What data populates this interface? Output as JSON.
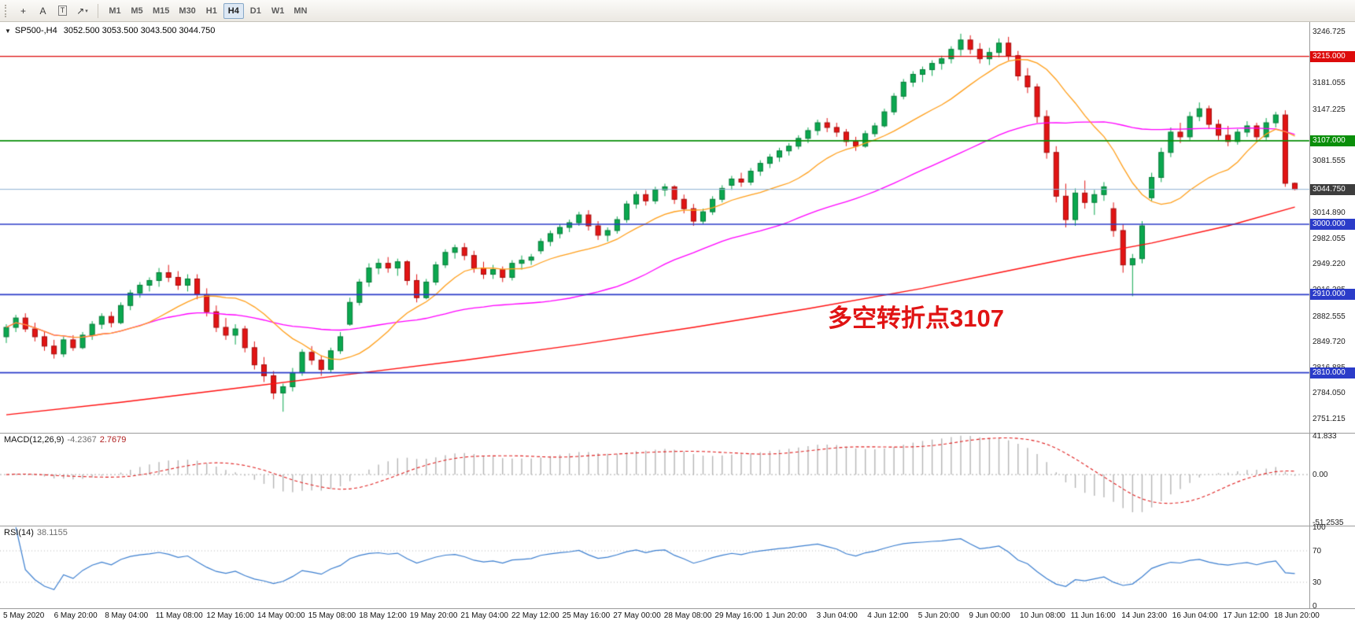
{
  "toolbar": {
    "tools": [
      {
        "name": "crosshair-tool-icon",
        "glyph": "+"
      },
      {
        "name": "text-tool-icon",
        "glyph": "A"
      },
      {
        "name": "label-tool-icon",
        "glyph": "T",
        "boxed": true
      },
      {
        "name": "arrows-tool-icon",
        "glyph": "↗",
        "caret": "▾"
      }
    ],
    "timeframes": [
      {
        "label": "M1"
      },
      {
        "label": "M5"
      },
      {
        "label": "M15"
      },
      {
        "label": "M30"
      },
      {
        "label": "H1"
      },
      {
        "label": "H4",
        "active": true
      },
      {
        "label": "D1"
      },
      {
        "label": "W1"
      },
      {
        "label": "MN"
      }
    ]
  },
  "quote": {
    "collapse_icon": "▼",
    "symbol_period": "SP500-,H4",
    "ohlc": "3052.500 3053.500 3043.500 3044.750"
  },
  "annotation": {
    "text": "多空转折点3107",
    "color": "#e01414"
  },
  "chart_data": {
    "type": "candlestick",
    "symbol": "SP500-",
    "timeframe": "H4",
    "price_axis": {
      "min": 2733,
      "max": 3259,
      "ticks": [
        "3246.725",
        "3181.055",
        "3147.225",
        "3081.555",
        "3014.890",
        "2982.055",
        "2949.220",
        "2916.385",
        "2882.555",
        "2849.720",
        "2816.885",
        "2784.050",
        "2751.215"
      ],
      "badges": [
        {
          "label": "3215.000",
          "price": 3215.0,
          "bg": "#dd0b0b"
        },
        {
          "label": "3107.000",
          "price": 3107.0,
          "bg": "#0a8f0a"
        },
        {
          "label": "3044.750",
          "price": 3044.75,
          "bg": "#3d3d3d"
        },
        {
          "label": "3000.000",
          "price": 3000.0,
          "bg": "#2b3cc9"
        },
        {
          "label": "2910.000",
          "price": 2910.0,
          "bg": "#2b3cc9"
        },
        {
          "label": "2810.000",
          "price": 2810.0,
          "bg": "#2b3cc9"
        }
      ]
    },
    "levels": [
      {
        "price": 3215.0,
        "color": "#dd0b0b",
        "width": 1.4
      },
      {
        "price": 3107.0,
        "color": "#0a8f0a",
        "width": 1.6
      },
      {
        "price": 3000.0,
        "color": "#2b3cc9",
        "width": 1.6
      },
      {
        "price": 2910.0,
        "color": "#2b3cc9",
        "width": 1.6
      },
      {
        "price": 2810.0,
        "color": "#2b3cc9",
        "width": 1.6
      }
    ],
    "current_price": 3044.75,
    "up_color": "#0ba84f",
    "up_border": "#077a38",
    "down_color": "#e21414",
    "down_border": "#a30d0d",
    "candles": [
      [
        2856,
        2872,
        2848,
        2868
      ],
      [
        2868,
        2884,
        2862,
        2880
      ],
      [
        2880,
        2886,
        2862,
        2866
      ],
      [
        2866,
        2874,
        2850,
        2856
      ],
      [
        2856,
        2862,
        2838,
        2844
      ],
      [
        2844,
        2852,
        2828,
        2834
      ],
      [
        2834,
        2856,
        2830,
        2852
      ],
      [
        2852,
        2858,
        2838,
        2842
      ],
      [
        2842,
        2862,
        2840,
        2858
      ],
      [
        2858,
        2876,
        2852,
        2872
      ],
      [
        2872,
        2886,
        2866,
        2882
      ],
      [
        2882,
        2888,
        2868,
        2874
      ],
      [
        2874,
        2900,
        2872,
        2896
      ],
      [
        2896,
        2916,
        2890,
        2912
      ],
      [
        2912,
        2926,
        2906,
        2922
      ],
      [
        2922,
        2932,
        2914,
        2928
      ],
      [
        2928,
        2944,
        2920,
        2938
      ],
      [
        2938,
        2948,
        2926,
        2932
      ],
      [
        2932,
        2940,
        2916,
        2922
      ],
      [
        2922,
        2936,
        2914,
        2930
      ],
      [
        2930,
        2936,
        2904,
        2910
      ],
      [
        2910,
        2918,
        2882,
        2888
      ],
      [
        2888,
        2896,
        2862,
        2868
      ],
      [
        2868,
        2880,
        2852,
        2858
      ],
      [
        2858,
        2872,
        2846,
        2866
      ],
      [
        2866,
        2870,
        2836,
        2842
      ],
      [
        2842,
        2850,
        2814,
        2820
      ],
      [
        2820,
        2830,
        2798,
        2806
      ],
      [
        2806,
        2812,
        2776,
        2784
      ],
      [
        2784,
        2796,
        2760,
        2792
      ],
      [
        2792,
        2816,
        2786,
        2810
      ],
      [
        2810,
        2840,
        2806,
        2836
      ],
      [
        2836,
        2844,
        2820,
        2826
      ],
      [
        2826,
        2832,
        2806,
        2814
      ],
      [
        2814,
        2842,
        2810,
        2838
      ],
      [
        2838,
        2862,
        2834,
        2856
      ],
      [
        2872,
        2906,
        2870,
        2900
      ],
      [
        2900,
        2930,
        2896,
        2926
      ],
      [
        2926,
        2950,
        2920,
        2944
      ],
      [
        2944,
        2956,
        2936,
        2950
      ],
      [
        2950,
        2958,
        2938,
        2944
      ],
      [
        2944,
        2956,
        2934,
        2952
      ],
      [
        2952,
        2954,
        2922,
        2928
      ],
      [
        2928,
        2936,
        2900,
        2906
      ],
      [
        2906,
        2930,
        2904,
        2926
      ],
      [
        2926,
        2952,
        2922,
        2948
      ],
      [
        2948,
        2968,
        2944,
        2964
      ],
      [
        2964,
        2974,
        2956,
        2970
      ],
      [
        2970,
        2976,
        2954,
        2960
      ],
      [
        2960,
        2966,
        2938,
        2944
      ],
      [
        2944,
        2952,
        2930,
        2936
      ],
      [
        2936,
        2948,
        2930,
        2942
      ],
      [
        2942,
        2946,
        2926,
        2932
      ],
      [
        2932,
        2954,
        2928,
        2950
      ],
      [
        2950,
        2960,
        2942,
        2954
      ],
      [
        2954,
        2962,
        2948,
        2958
      ],
      [
        2966,
        2982,
        2962,
        2978
      ],
      [
        2978,
        2992,
        2972,
        2988
      ],
      [
        2988,
        3000,
        2982,
        2996
      ],
      [
        2996,
        3006,
        2990,
        3002
      ],
      [
        3002,
        3016,
        2998,
        3012
      ],
      [
        3012,
        3018,
        2992,
        2998
      ],
      [
        2998,
        3004,
        2980,
        2986
      ],
      [
        2986,
        2996,
        2978,
        2992
      ],
      [
        2992,
        3010,
        2988,
        3006
      ],
      [
        3006,
        3030,
        3002,
        3026
      ],
      [
        3026,
        3042,
        3020,
        3038
      ],
      [
        3038,
        3044,
        3024,
        3030
      ],
      [
        3030,
        3048,
        3026,
        3044
      ],
      [
        3044,
        3052,
        3036,
        3048
      ],
      [
        3048,
        3050,
        3026,
        3032
      ],
      [
        3032,
        3038,
        3014,
        3020
      ],
      [
        3020,
        3026,
        2998,
        3004
      ],
      [
        3004,
        3020,
        3000,
        3016
      ],
      [
        3016,
        3036,
        3012,
        3032
      ],
      [
        3032,
        3050,
        3028,
        3046
      ],
      [
        3050,
        3062,
        3044,
        3058
      ],
      [
        3058,
        3066,
        3048,
        3054
      ],
      [
        3054,
        3072,
        3050,
        3068
      ],
      [
        3068,
        3082,
        3062,
        3078
      ],
      [
        3078,
        3090,
        3072,
        3086
      ],
      [
        3086,
        3098,
        3080,
        3094
      ],
      [
        3094,
        3104,
        3088,
        3100
      ],
      [
        3100,
        3114,
        3096,
        3110
      ],
      [
        3110,
        3124,
        3104,
        3120
      ],
      [
        3120,
        3134,
        3114,
        3130
      ],
      [
        3130,
        3136,
        3118,
        3124
      ],
      [
        3124,
        3130,
        3112,
        3118
      ],
      [
        3118,
        3122,
        3100,
        3106
      ],
      [
        3106,
        3112,
        3094,
        3100
      ],
      [
        3100,
        3120,
        3098,
        3116
      ],
      [
        3116,
        3130,
        3112,
        3126
      ],
      [
        3126,
        3148,
        3124,
        3144
      ],
      [
        3144,
        3168,
        3140,
        3164
      ],
      [
        3164,
        3186,
        3160,
        3182
      ],
      [
        3182,
        3196,
        3176,
        3192
      ],
      [
        3192,
        3202,
        3182,
        3198
      ],
      [
        3198,
        3210,
        3190,
        3206
      ],
      [
        3206,
        3216,
        3198,
        3212
      ],
      [
        3212,
        3228,
        3206,
        3224
      ],
      [
        3224,
        3244,
        3216,
        3236
      ],
      [
        3236,
        3242,
        3218,
        3224
      ],
      [
        3224,
        3232,
        3206,
        3212
      ],
      [
        3212,
        3226,
        3204,
        3220
      ],
      [
        3220,
        3238,
        3214,
        3232
      ],
      [
        3232,
        3240,
        3210,
        3216
      ],
      [
        3216,
        3222,
        3184,
        3190
      ],
      [
        3190,
        3200,
        3168,
        3176
      ],
      [
        3176,
        3180,
        3130,
        3138
      ],
      [
        3138,
        3146,
        3084,
        3092
      ],
      [
        3092,
        3100,
        3028,
        3036
      ],
      [
        3036,
        3052,
        2996,
        3006
      ],
      [
        3006,
        3046,
        2998,
        3040
      ],
      [
        3040,
        3056,
        3020,
        3028
      ],
      [
        3028,
        3044,
        3012,
        3038
      ],
      [
        3038,
        3054,
        3030,
        3048
      ],
      [
        3020,
        3028,
        2984,
        2992
      ],
      [
        2992,
        3000,
        2938,
        2948
      ],
      [
        2948,
        2962,
        2908,
        2956
      ],
      [
        2956,
        3004,
        2950,
        2998
      ],
      [
        3034,
        3066,
        3030,
        3060
      ],
      [
        3060,
        3098,
        3054,
        3092
      ],
      [
        3092,
        3124,
        3086,
        3118
      ],
      [
        3118,
        3130,
        3104,
        3112
      ],
      [
        3112,
        3144,
        3108,
        3138
      ],
      [
        3138,
        3156,
        3132,
        3148
      ],
      [
        3148,
        3152,
        3122,
        3128
      ],
      [
        3128,
        3134,
        3108,
        3114
      ],
      [
        3114,
        3126,
        3100,
        3106
      ],
      [
        3106,
        3122,
        3102,
        3118
      ],
      [
        3118,
        3132,
        3112,
        3126
      ],
      [
        3126,
        3130,
        3106,
        3112
      ],
      [
        3112,
        3136,
        3108,
        3130
      ],
      [
        3130,
        3144,
        3124,
        3140
      ],
      [
        3140,
        3146,
        3048,
        3052.5
      ],
      [
        3052.5,
        3053.5,
        3043.5,
        3044.75
      ]
    ],
    "ma": {
      "fast_period": 13,
      "fast_color": "#ff9f1a",
      "mid_period": 40,
      "mid_color": "#ff00ff",
      "slow_color": "#ff1010",
      "slow_points": [
        [
          0,
          2756
        ],
        [
          12,
          2772
        ],
        [
          24,
          2790
        ],
        [
          36,
          2808
        ],
        [
          48,
          2826
        ],
        [
          60,
          2846
        ],
        [
          72,
          2868
        ],
        [
          84,
          2892
        ],
        [
          96,
          2918
        ],
        [
          104,
          2938
        ],
        [
          112,
          2958
        ],
        [
          120,
          2976
        ],
        [
          128,
          2998
        ],
        [
          135,
          3022
        ]
      ]
    },
    "macd": {
      "label": "MACD(12,26,9)",
      "value": "-4.2367",
      "signal_value": "2.7679",
      "fast": 12,
      "slow": 26,
      "signal": 9,
      "axis_ticks": [
        "41.833",
        "0.00",
        "-51.2535"
      ],
      "axis_values": [
        41.833,
        0,
        -51.2535
      ],
      "range": [
        -55,
        45
      ],
      "hist_color": "#b5b5b5",
      "signal_color": "#e02020"
    },
    "rsi": {
      "label": "RSI(14)",
      "value": "38.1155",
      "period": 14,
      "axis_ticks": [
        "100",
        "70",
        "30",
        "0"
      ],
      "axis_values": [
        100,
        70,
        30,
        0
      ],
      "levels": [
        70,
        30
      ],
      "color": "#3c7fd0",
      "range": [
        0,
        100
      ]
    },
    "time_labels": [
      "5 May 2020",
      "6 May 20:00",
      "8 May 04:00",
      "11 May 08:00",
      "12 May 16:00",
      "14 May 00:00",
      "15 May 08:00",
      "18 May 12:00",
      "19 May 20:00",
      "21 May 04:00",
      "22 May 12:00",
      "25 May 16:00",
      "27 May 00:00",
      "28 May 08:00",
      "29 May 16:00",
      "1 Jun 20:00",
      "3 Jun 04:00",
      "4 Jun 12:00",
      "5 Jun 20:00",
      "9 Jun 00:00",
      "10 Jun 08:00",
      "11 Jun 16:00",
      "14 Jun 23:00",
      "16 Jun 04:00",
      "17 Jun 12:00",
      "18 Jun 20:00"
    ]
  }
}
